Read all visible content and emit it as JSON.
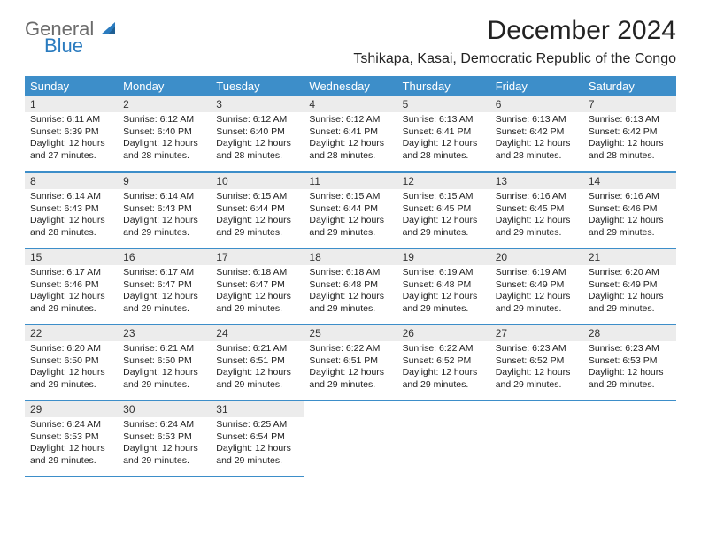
{
  "logo": {
    "line1": "General",
    "line2": "Blue"
  },
  "title": "December 2024",
  "location": "Tshikapa, Kasai, Democratic Republic of the Congo",
  "colors": {
    "header_blue": "#3d8ec9",
    "rule_blue": "#3d8ec9",
    "daynum_bg": "#ececec",
    "logo_gray": "#6b6b6b",
    "logo_blue": "#2a7bbf",
    "text": "#222222",
    "bg": "#ffffff"
  },
  "typography": {
    "title_fontsize": 30,
    "location_fontsize": 16,
    "header_fontsize": 13,
    "daynum_fontsize": 12,
    "body_fontsize": 10.5,
    "font_family": "Arial"
  },
  "calendar": {
    "type": "table",
    "columns": [
      "Sunday",
      "Monday",
      "Tuesday",
      "Wednesday",
      "Thursday",
      "Friday",
      "Saturday"
    ],
    "weeks": [
      [
        {
          "day": "1",
          "sunrise": "Sunrise: 6:11 AM",
          "sunset": "Sunset: 6:39 PM",
          "daylight": "Daylight: 12 hours and 27 minutes."
        },
        {
          "day": "2",
          "sunrise": "Sunrise: 6:12 AM",
          "sunset": "Sunset: 6:40 PM",
          "daylight": "Daylight: 12 hours and 28 minutes."
        },
        {
          "day": "3",
          "sunrise": "Sunrise: 6:12 AM",
          "sunset": "Sunset: 6:40 PM",
          "daylight": "Daylight: 12 hours and 28 minutes."
        },
        {
          "day": "4",
          "sunrise": "Sunrise: 6:12 AM",
          "sunset": "Sunset: 6:41 PM",
          "daylight": "Daylight: 12 hours and 28 minutes."
        },
        {
          "day": "5",
          "sunrise": "Sunrise: 6:13 AM",
          "sunset": "Sunset: 6:41 PM",
          "daylight": "Daylight: 12 hours and 28 minutes."
        },
        {
          "day": "6",
          "sunrise": "Sunrise: 6:13 AM",
          "sunset": "Sunset: 6:42 PM",
          "daylight": "Daylight: 12 hours and 28 minutes."
        },
        {
          "day": "7",
          "sunrise": "Sunrise: 6:13 AM",
          "sunset": "Sunset: 6:42 PM",
          "daylight": "Daylight: 12 hours and 28 minutes."
        }
      ],
      [
        {
          "day": "8",
          "sunrise": "Sunrise: 6:14 AM",
          "sunset": "Sunset: 6:43 PM",
          "daylight": "Daylight: 12 hours and 28 minutes."
        },
        {
          "day": "9",
          "sunrise": "Sunrise: 6:14 AM",
          "sunset": "Sunset: 6:43 PM",
          "daylight": "Daylight: 12 hours and 29 minutes."
        },
        {
          "day": "10",
          "sunrise": "Sunrise: 6:15 AM",
          "sunset": "Sunset: 6:44 PM",
          "daylight": "Daylight: 12 hours and 29 minutes."
        },
        {
          "day": "11",
          "sunrise": "Sunrise: 6:15 AM",
          "sunset": "Sunset: 6:44 PM",
          "daylight": "Daylight: 12 hours and 29 minutes."
        },
        {
          "day": "12",
          "sunrise": "Sunrise: 6:15 AM",
          "sunset": "Sunset: 6:45 PM",
          "daylight": "Daylight: 12 hours and 29 minutes."
        },
        {
          "day": "13",
          "sunrise": "Sunrise: 6:16 AM",
          "sunset": "Sunset: 6:45 PM",
          "daylight": "Daylight: 12 hours and 29 minutes."
        },
        {
          "day": "14",
          "sunrise": "Sunrise: 6:16 AM",
          "sunset": "Sunset: 6:46 PM",
          "daylight": "Daylight: 12 hours and 29 minutes."
        }
      ],
      [
        {
          "day": "15",
          "sunrise": "Sunrise: 6:17 AM",
          "sunset": "Sunset: 6:46 PM",
          "daylight": "Daylight: 12 hours and 29 minutes."
        },
        {
          "day": "16",
          "sunrise": "Sunrise: 6:17 AM",
          "sunset": "Sunset: 6:47 PM",
          "daylight": "Daylight: 12 hours and 29 minutes."
        },
        {
          "day": "17",
          "sunrise": "Sunrise: 6:18 AM",
          "sunset": "Sunset: 6:47 PM",
          "daylight": "Daylight: 12 hours and 29 minutes."
        },
        {
          "day": "18",
          "sunrise": "Sunrise: 6:18 AM",
          "sunset": "Sunset: 6:48 PM",
          "daylight": "Daylight: 12 hours and 29 minutes."
        },
        {
          "day": "19",
          "sunrise": "Sunrise: 6:19 AM",
          "sunset": "Sunset: 6:48 PM",
          "daylight": "Daylight: 12 hours and 29 minutes."
        },
        {
          "day": "20",
          "sunrise": "Sunrise: 6:19 AM",
          "sunset": "Sunset: 6:49 PM",
          "daylight": "Daylight: 12 hours and 29 minutes."
        },
        {
          "day": "21",
          "sunrise": "Sunrise: 6:20 AM",
          "sunset": "Sunset: 6:49 PM",
          "daylight": "Daylight: 12 hours and 29 minutes."
        }
      ],
      [
        {
          "day": "22",
          "sunrise": "Sunrise: 6:20 AM",
          "sunset": "Sunset: 6:50 PM",
          "daylight": "Daylight: 12 hours and 29 minutes."
        },
        {
          "day": "23",
          "sunrise": "Sunrise: 6:21 AM",
          "sunset": "Sunset: 6:50 PM",
          "daylight": "Daylight: 12 hours and 29 minutes."
        },
        {
          "day": "24",
          "sunrise": "Sunrise: 6:21 AM",
          "sunset": "Sunset: 6:51 PM",
          "daylight": "Daylight: 12 hours and 29 minutes."
        },
        {
          "day": "25",
          "sunrise": "Sunrise: 6:22 AM",
          "sunset": "Sunset: 6:51 PM",
          "daylight": "Daylight: 12 hours and 29 minutes."
        },
        {
          "day": "26",
          "sunrise": "Sunrise: 6:22 AM",
          "sunset": "Sunset: 6:52 PM",
          "daylight": "Daylight: 12 hours and 29 minutes."
        },
        {
          "day": "27",
          "sunrise": "Sunrise: 6:23 AM",
          "sunset": "Sunset: 6:52 PM",
          "daylight": "Daylight: 12 hours and 29 minutes."
        },
        {
          "day": "28",
          "sunrise": "Sunrise: 6:23 AM",
          "sunset": "Sunset: 6:53 PM",
          "daylight": "Daylight: 12 hours and 29 minutes."
        }
      ],
      [
        {
          "day": "29",
          "sunrise": "Sunrise: 6:24 AM",
          "sunset": "Sunset: 6:53 PM",
          "daylight": "Daylight: 12 hours and 29 minutes."
        },
        {
          "day": "30",
          "sunrise": "Sunrise: 6:24 AM",
          "sunset": "Sunset: 6:53 PM",
          "daylight": "Daylight: 12 hours and 29 minutes."
        },
        {
          "day": "31",
          "sunrise": "Sunrise: 6:25 AM",
          "sunset": "Sunset: 6:54 PM",
          "daylight": "Daylight: 12 hours and 29 minutes."
        },
        null,
        null,
        null,
        null
      ]
    ]
  }
}
